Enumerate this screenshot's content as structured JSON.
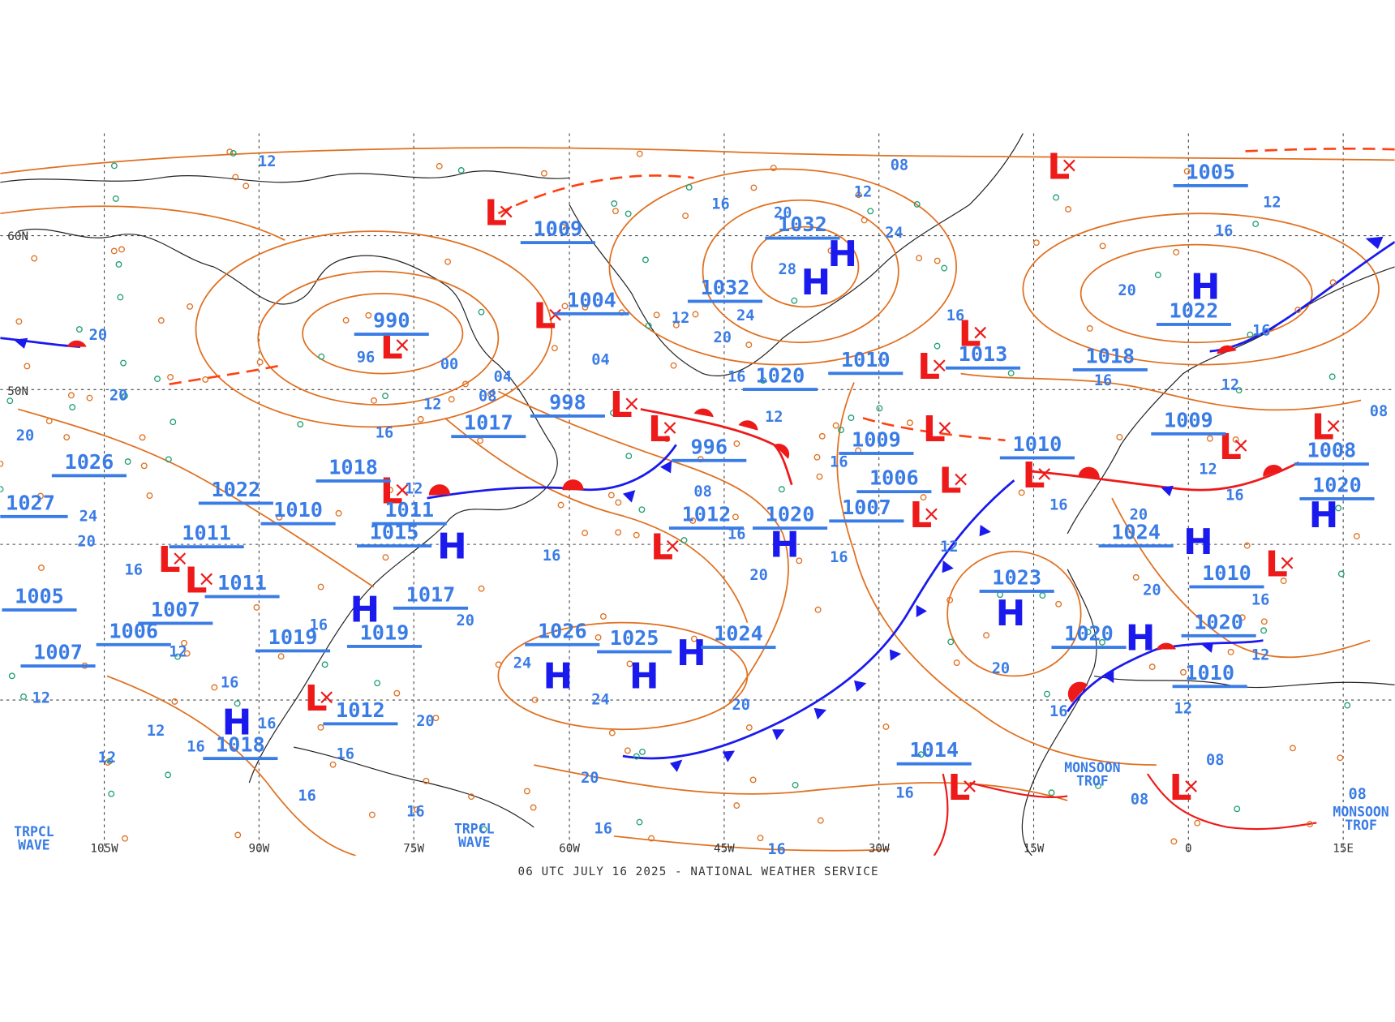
{
  "footer": "06 UTC JULY 16 2025 - NATIONAL WEATHER SERVICE",
  "longitudes": [
    "105W",
    "90W",
    "75W",
    "60W",
    "45W",
    "30W",
    "15W",
    "0",
    "15E"
  ],
  "latitudes": [
    "60N",
    "50N"
  ],
  "pressure_labels": [
    "1032",
    "1032",
    "1020",
    "1026",
    "1022",
    "1020",
    "1026",
    "1025",
    "1024",
    "1023",
    "1024",
    "1022",
    "1020",
    "1020",
    "1020",
    "1019",
    "1018",
    "1015",
    "1017",
    "990",
    "1009",
    "1004",
    "998",
    "996",
    "1012",
    "1010",
    "1013",
    "1009",
    "1006",
    "1007",
    "1010",
    "1018",
    "1009",
    "1008",
    "1010",
    "1010",
    "1014",
    "1005",
    "1012",
    "1018",
    "1017",
    "1011",
    "1011",
    "1006",
    "1007",
    "1007",
    "1005",
    "1027",
    "1019",
    "1010",
    "1011"
  ],
  "symbols": [
    "H",
    "H",
    "H",
    "H",
    "H",
    "H",
    "H",
    "H",
    "H",
    "H",
    "H",
    "H",
    "H",
    "H",
    "L",
    "L",
    "L",
    "L",
    "L",
    "L",
    "L",
    "L",
    "L",
    "L",
    "L",
    "L",
    "L",
    "L",
    "L",
    "L",
    "L",
    "L",
    "L",
    "L",
    "L",
    "L"
  ],
  "isobar_labels": [
    "12",
    "08",
    "12",
    "16",
    "20",
    "24",
    "16",
    "12",
    "28",
    "20",
    "24",
    "20",
    "12",
    "04",
    "00",
    "96",
    "04",
    "08",
    "20",
    "20",
    "20",
    "12",
    "16",
    "16",
    "12",
    "08",
    "16",
    "16",
    "16",
    "12",
    "16",
    "08",
    "12",
    "16",
    "16",
    "20",
    "16",
    "16",
    "12",
    "20",
    "16",
    "20",
    "16",
    "12",
    "20",
    "24",
    "24",
    "20",
    "12",
    "16",
    "20",
    "08",
    "08",
    "08",
    "16",
    "20",
    "16",
    "16",
    "20",
    "16",
    "16",
    "16",
    "16",
    "16",
    "12",
    "12",
    "12",
    "16",
    "24",
    "20",
    "16",
    "12",
    "16",
    "12"
  ],
  "annotations": [
    {
      "lines": [
        "TRPCL",
        "WAVE"
      ]
    },
    {
      "lines": [
        "TRPCL",
        "WAVE"
      ]
    },
    {
      "lines": [
        "MONSOON",
        "TROF"
      ]
    },
    {
      "lines": [
        "MONSOON",
        "TROF"
      ]
    }
  ]
}
